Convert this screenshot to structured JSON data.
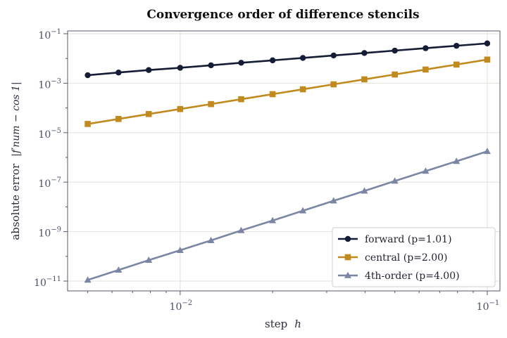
{
  "chart_data": {
    "type": "line",
    "title": "Convergence order of difference stencils",
    "xlabel": "step",
    "xlabel_var": "h",
    "ylabel": "absolute error",
    "ylabel_expr": "|f′num − cos 1|",
    "x_scale": "log",
    "y_scale": "log",
    "xlim": [
      0.0043,
      0.11
    ],
    "ylim": [
      4e-12,
      0.13
    ],
    "grid": true,
    "legend_position": "lower-right",
    "x_ticks": [
      {
        "value": 0.01,
        "base": "10",
        "exp": "−2"
      },
      {
        "value": 0.1,
        "base": "10",
        "exp": "−1"
      }
    ],
    "y_ticks": [
      {
        "value": 0.1,
        "base": "10",
        "exp": "−1"
      },
      {
        "value": 0.001,
        "base": "10",
        "exp": "−3"
      },
      {
        "value": 1e-05,
        "base": "10",
        "exp": "−5"
      },
      {
        "value": 1e-07,
        "base": "10",
        "exp": "−7"
      },
      {
        "value": 1e-09,
        "base": "10",
        "exp": "−9"
      },
      {
        "value": 1e-11,
        "base": "10",
        "exp": "−11"
      }
    ],
    "x": [
      0.005,
      0.0063,
      0.0079,
      0.01,
      0.0126,
      0.0158,
      0.02,
      0.0251,
      0.0316,
      0.0398,
      0.05,
      0.063,
      0.0794,
      0.1
    ],
    "series": [
      {
        "name": "forward  (p=1.01)",
        "marker": "circle",
        "color": "#141c36",
        "values": [
          0.0021,
          0.0027,
          0.0034,
          0.0042,
          0.0053,
          0.0067,
          0.0084,
          0.0105,
          0.0132,
          0.0166,
          0.0208,
          0.026,
          0.0326,
          0.0407
        ]
      },
      {
        "name": "central  (p=2.00)",
        "marker": "square",
        "color": "#c08a1e",
        "values": [
          2.25e-05,
          3.58e-05,
          5.67e-05,
          9e-05,
          0.000143,
          0.000225,
          0.00036,
          0.000567,
          0.0009,
          0.00143,
          0.00225,
          0.00357,
          0.00567,
          0.009
        ]
      },
      {
        "name": "4th-order  (p=4.00)",
        "marker": "triangle",
        "color": "#7a86a3",
        "values": [
          1.11e-11,
          2.8e-11,
          7e-11,
          1.76e-10,
          4.4e-10,
          1.11e-09,
          2.8e-09,
          7e-09,
          1.76e-08,
          4.4e-08,
          1.11e-07,
          2.8e-07,
          7e-07,
          1.76e-06
        ]
      }
    ]
  }
}
